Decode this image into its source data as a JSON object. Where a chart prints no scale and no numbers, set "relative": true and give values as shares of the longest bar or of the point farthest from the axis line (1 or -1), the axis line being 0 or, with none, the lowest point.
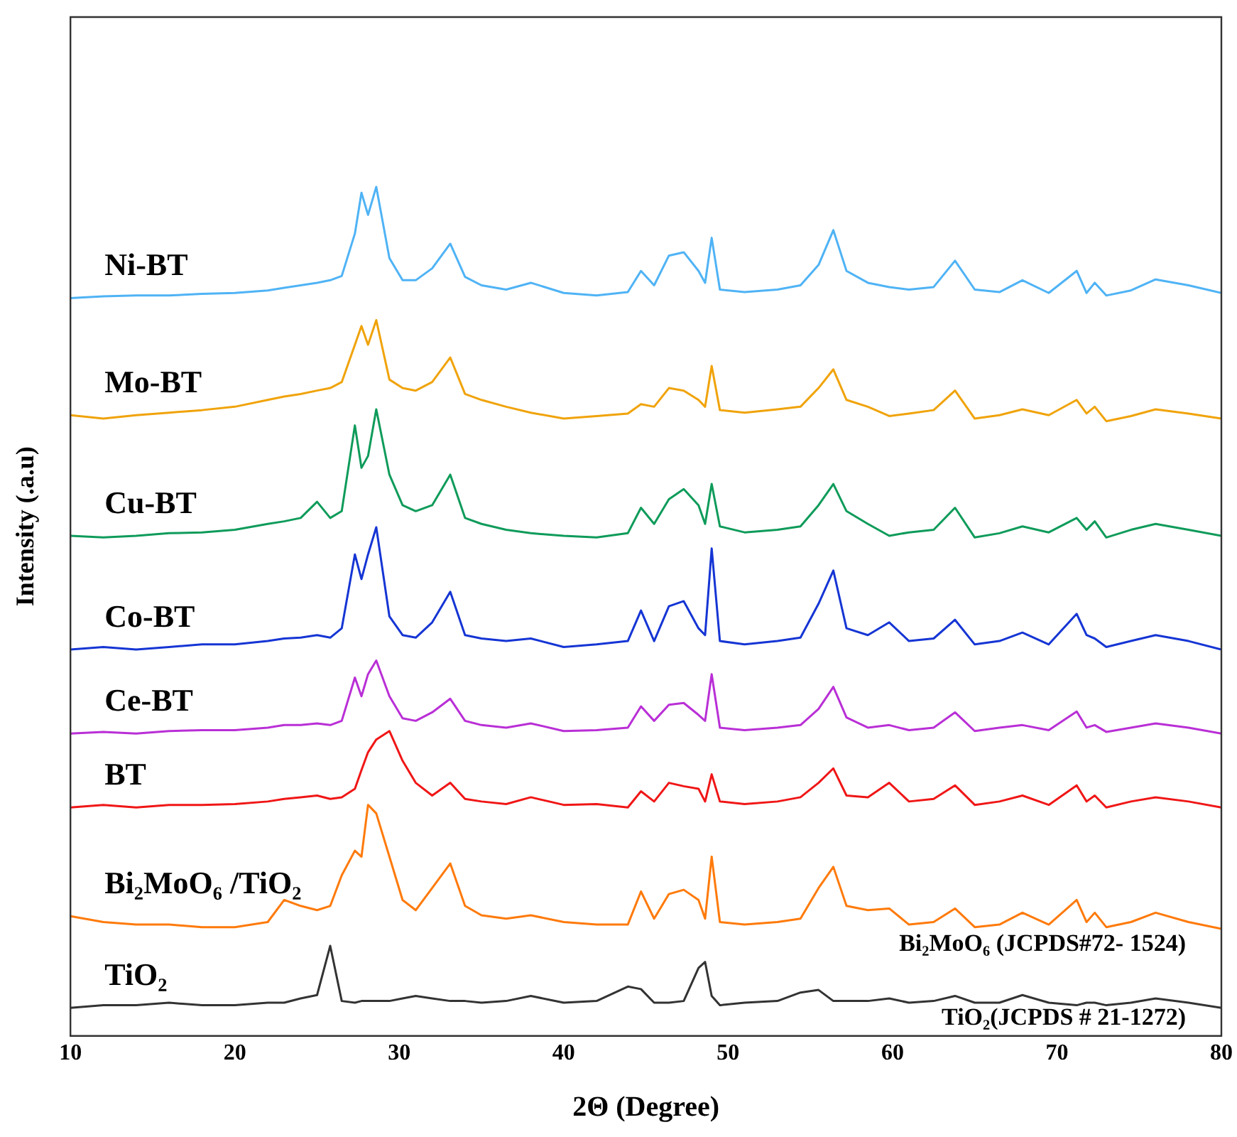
{
  "chart_data": {
    "type": "line",
    "xlabel": "2Θ (Degree)",
    "ylabel": "Intensity (.a.u)",
    "relative": true,
    "xlim": [
      10,
      80
    ],
    "xticks": [
      10,
      20,
      30,
      40,
      50,
      60,
      70,
      80
    ],
    "marker": "none",
    "line_style": "solid",
    "annotations": [
      "Bi₂MoO₆ (JCPDS#72- 1524)",
      "TiO₂(JCPDS # 21-1272)"
    ],
    "x": [
      10,
      12,
      14,
      16,
      18,
      20,
      22,
      23,
      24,
      25,
      25.8,
      26.5,
      27.3,
      27.7,
      28.1,
      28.6,
      29.4,
      30.2,
      31,
      32,
      33.1,
      34,
      35,
      36.5,
      38,
      40,
      42,
      43.9,
      44.7,
      45.5,
      46.4,
      47.3,
      48.2,
      48.6,
      49.0,
      49.5,
      51,
      53,
      54.4,
      55.5,
      56.4,
      57.2,
      58.5,
      59.8,
      61,
      62.5,
      63.8,
      65,
      66.5,
      67.9,
      69.5,
      71.2,
      71.8,
      72.3,
      73,
      74.5,
      76,
      78,
      80
    ],
    "series": [
      {
        "name": "Ni-BT",
        "color": "#4fb3f5",
        "values": [
          0.869,
          0.871,
          0.872,
          0.872,
          0.874,
          0.875,
          0.878,
          0.881,
          0.884,
          0.887,
          0.89,
          0.895,
          0.945,
          0.993,
          0.967,
          1.0,
          0.916,
          0.89,
          0.89,
          0.904,
          0.933,
          0.894,
          0.884,
          0.879,
          0.887,
          0.875,
          0.872,
          0.876,
          0.901,
          0.884,
          0.919,
          0.923,
          0.901,
          0.887,
          0.94,
          0.879,
          0.876,
          0.879,
          0.884,
          0.908,
          0.949,
          0.901,
          0.887,
          0.882,
          0.879,
          0.882,
          0.913,
          0.879,
          0.876,
          0.89,
          0.875,
          0.901,
          0.875,
          0.887,
          0.872,
          0.878,
          0.891,
          0.884,
          0.875
        ]
      },
      {
        "name": "Mo-BT",
        "color": "#f0a30a",
        "values": [
          0.731,
          0.727,
          0.731,
          0.734,
          0.737,
          0.741,
          0.749,
          0.753,
          0.756,
          0.76,
          0.763,
          0.77,
          0.814,
          0.836,
          0.814,
          0.843,
          0.773,
          0.763,
          0.76,
          0.77,
          0.799,
          0.756,
          0.749,
          0.741,
          0.734,
          0.727,
          0.73,
          0.733,
          0.744,
          0.741,
          0.763,
          0.76,
          0.749,
          0.741,
          0.789,
          0.737,
          0.734,
          0.738,
          0.741,
          0.763,
          0.785,
          0.749,
          0.741,
          0.73,
          0.733,
          0.737,
          0.76,
          0.727,
          0.731,
          0.738,
          0.731,
          0.749,
          0.733,
          0.741,
          0.724,
          0.73,
          0.738,
          0.733,
          0.727
        ]
      },
      {
        "name": "Cu-BT",
        "color": "#0e9b5a",
        "values": [
          0.589,
          0.587,
          0.589,
          0.592,
          0.593,
          0.596,
          0.603,
          0.606,
          0.61,
          0.629,
          0.61,
          0.618,
          0.719,
          0.669,
          0.683,
          0.738,
          0.661,
          0.625,
          0.618,
          0.625,
          0.661,
          0.61,
          0.603,
          0.596,
          0.592,
          0.589,
          0.587,
          0.592,
          0.622,
          0.603,
          0.632,
          0.644,
          0.625,
          0.603,
          0.65,
          0.6,
          0.593,
          0.596,
          0.6,
          0.625,
          0.65,
          0.618,
          0.603,
          0.589,
          0.593,
          0.596,
          0.622,
          0.587,
          0.592,
          0.6,
          0.593,
          0.61,
          0.596,
          0.606,
          0.587,
          0.596,
          0.603,
          0.596,
          0.589
        ]
      },
      {
        "name": "Co-BT",
        "color": "#1535d4",
        "values": [
          0.455,
          0.458,
          0.455,
          0.458,
          0.461,
          0.461,
          0.465,
          0.468,
          0.469,
          0.472,
          0.469,
          0.48,
          0.567,
          0.538,
          0.567,
          0.599,
          0.494,
          0.472,
          0.469,
          0.487,
          0.523,
          0.472,
          0.468,
          0.465,
          0.468,
          0.458,
          0.461,
          0.465,
          0.501,
          0.465,
          0.506,
          0.512,
          0.48,
          0.472,
          0.574,
          0.465,
          0.461,
          0.465,
          0.469,
          0.509,
          0.548,
          0.48,
          0.472,
          0.487,
          0.465,
          0.468,
          0.49,
          0.461,
          0.465,
          0.475,
          0.461,
          0.497,
          0.472,
          0.468,
          0.458,
          0.465,
          0.472,
          0.465,
          0.455
        ]
      },
      {
        "name": "Ce-BT",
        "color": "#b92fd6",
        "values": [
          0.356,
          0.358,
          0.356,
          0.359,
          0.36,
          0.36,
          0.363,
          0.366,
          0.366,
          0.368,
          0.366,
          0.371,
          0.422,
          0.4,
          0.426,
          0.442,
          0.4,
          0.374,
          0.371,
          0.381,
          0.397,
          0.371,
          0.366,
          0.363,
          0.368,
          0.359,
          0.36,
          0.363,
          0.388,
          0.371,
          0.39,
          0.392,
          0.378,
          0.371,
          0.426,
          0.363,
          0.36,
          0.363,
          0.366,
          0.385,
          0.411,
          0.375,
          0.363,
          0.366,
          0.36,
          0.363,
          0.381,
          0.359,
          0.363,
          0.366,
          0.36,
          0.382,
          0.363,
          0.366,
          0.358,
          0.363,
          0.368,
          0.363,
          0.356
        ]
      },
      {
        "name": "BT",
        "color": "#f01616",
        "values": [
          0.269,
          0.272,
          0.269,
          0.272,
          0.272,
          0.273,
          0.276,
          0.279,
          0.281,
          0.283,
          0.279,
          0.281,
          0.291,
          0.313,
          0.334,
          0.349,
          0.359,
          0.324,
          0.298,
          0.283,
          0.298,
          0.279,
          0.276,
          0.273,
          0.281,
          0.272,
          0.273,
          0.269,
          0.288,
          0.276,
          0.298,
          0.294,
          0.291,
          0.276,
          0.308,
          0.276,
          0.273,
          0.276,
          0.281,
          0.298,
          0.315,
          0.283,
          0.281,
          0.298,
          0.276,
          0.279,
          0.295,
          0.272,
          0.276,
          0.283,
          0.272,
          0.295,
          0.276,
          0.283,
          0.269,
          0.276,
          0.281,
          0.276,
          0.269
        ]
      },
      {
        "name": "Bi₂MoO₆ /TiO₂",
        "color": "#ff7a0a",
        "values": [
          0.141,
          0.134,
          0.131,
          0.131,
          0.128,
          0.128,
          0.134,
          0.16,
          0.153,
          0.148,
          0.153,
          0.189,
          0.218,
          0.211,
          0.272,
          0.262,
          0.211,
          0.16,
          0.148,
          0.174,
          0.203,
          0.153,
          0.142,
          0.138,
          0.142,
          0.134,
          0.131,
          0.131,
          0.17,
          0.138,
          0.167,
          0.172,
          0.16,
          0.138,
          0.211,
          0.134,
          0.131,
          0.134,
          0.138,
          0.174,
          0.199,
          0.153,
          0.148,
          0.15,
          0.131,
          0.134,
          0.15,
          0.128,
          0.131,
          0.145,
          0.131,
          0.16,
          0.134,
          0.145,
          0.128,
          0.134,
          0.145,
          0.134,
          0.126
        ]
      },
      {
        "name": "TiO₂",
        "color": "#333333",
        "values": [
          0.033,
          0.036,
          0.036,
          0.039,
          0.036,
          0.036,
          0.039,
          0.039,
          0.044,
          0.048,
          0.106,
          0.041,
          0.039,
          0.041,
          0.041,
          0.041,
          0.041,
          0.044,
          0.047,
          0.044,
          0.041,
          0.041,
          0.039,
          0.041,
          0.047,
          0.039,
          0.041,
          0.058,
          0.055,
          0.039,
          0.039,
          0.041,
          0.08,
          0.087,
          0.047,
          0.036,
          0.039,
          0.041,
          0.051,
          0.054,
          0.041,
          0.041,
          0.041,
          0.044,
          0.039,
          0.041,
          0.047,
          0.039,
          0.039,
          0.048,
          0.039,
          0.036,
          0.039,
          0.039,
          0.036,
          0.039,
          0.044,
          0.039,
          0.033
        ]
      }
    ]
  }
}
